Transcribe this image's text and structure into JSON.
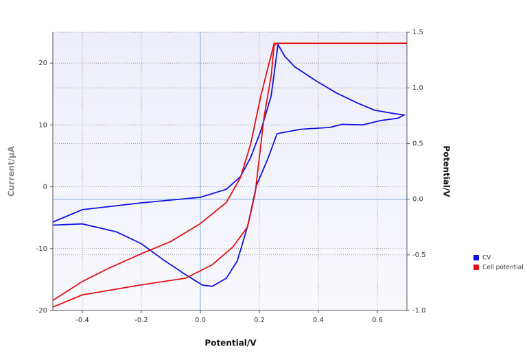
{
  "chart_data": {
    "type": "line",
    "x_label": "Potential/V",
    "y_label": "Current/µA",
    "y2_label": "Potential/V",
    "xlim": [
      -0.5,
      0.7
    ],
    "xticks": [
      -0.4,
      -0.2,
      {
        "value": 0,
        "label": "0.0"
      },
      0.2,
      0.4,
      0.6
    ],
    "ylim": [
      -20,
      25
    ],
    "yticks": [
      -20,
      -10,
      0,
      10,
      20
    ],
    "y2lim": [
      -1,
      1.5
    ],
    "y2ticks": [
      {
        "value": -1,
        "label": "-1.0"
      },
      -0.5,
      {
        "value": 0,
        "label": "0.0"
      },
      0.5,
      {
        "value": 1,
        "label": "1.0"
      },
      1.5
    ],
    "grid": true,
    "legend": "right",
    "series": [
      {
        "name": "CV",
        "color": "#1010e0",
        "x": [
          -0.5,
          -0.4,
          -0.2,
          0,
          0.088,
          0.135,
          0.17,
          0.205,
          0.24,
          0.263,
          0.286,
          0.32,
          0.39,
          0.46,
          0.53,
          0.59,
          0.65,
          0.69,
          0.67,
          0.61,
          0.55,
          0.48,
          0.44,
          0.34,
          0.26,
          0.23,
          0.19,
          0.16,
          0.125,
          0.088,
          0.04,
          0.007,
          -0.05,
          -0.12,
          -0.2,
          -0.284,
          -0.4,
          -0.5
        ],
        "values": [
          -5.7,
          -3.7,
          -2.6,
          -1.7,
          -0.4,
          1.6,
          4.7,
          9.1,
          14.7,
          23,
          21.1,
          19.4,
          17.2,
          15.2,
          13.6,
          12.4,
          11.9,
          11.6,
          11.1,
          10.7,
          10,
          10.1,
          9.6,
          9.3,
          8.6,
          4.7,
          0.2,
          -6.4,
          -12,
          -14.8,
          -16.1,
          -15.9,
          -14.2,
          -12,
          -9.2,
          -7.3,
          -6,
          -6.2
        ]
      },
      {
        "name": "Cell potential",
        "color": "#e01010",
        "axis": "y2",
        "x": [
          -0.5,
          -0.4,
          -0.2,
          -0.05,
          0.04,
          0.11,
          0.16,
          0.186,
          0.216,
          0.24,
          0.25,
          0.26,
          0.7,
          0.25,
          0.228,
          0.205,
          0.17,
          0.135,
          0.088,
          0,
          -0.1,
          -0.2,
          -0.31,
          -0.4,
          -0.5
        ],
        "values": [
          -0.97,
          -0.86,
          -0.77,
          -0.71,
          -0.59,
          -0.43,
          -0.25,
          0.06,
          0.74,
          1.11,
          1.38,
          1.4,
          1.4,
          1.4,
          1.17,
          0.93,
          0.49,
          0.19,
          -0.03,
          -0.22,
          -0.38,
          -0.49,
          -0.62,
          -0.74,
          -0.91
        ]
      }
    ]
  }
}
